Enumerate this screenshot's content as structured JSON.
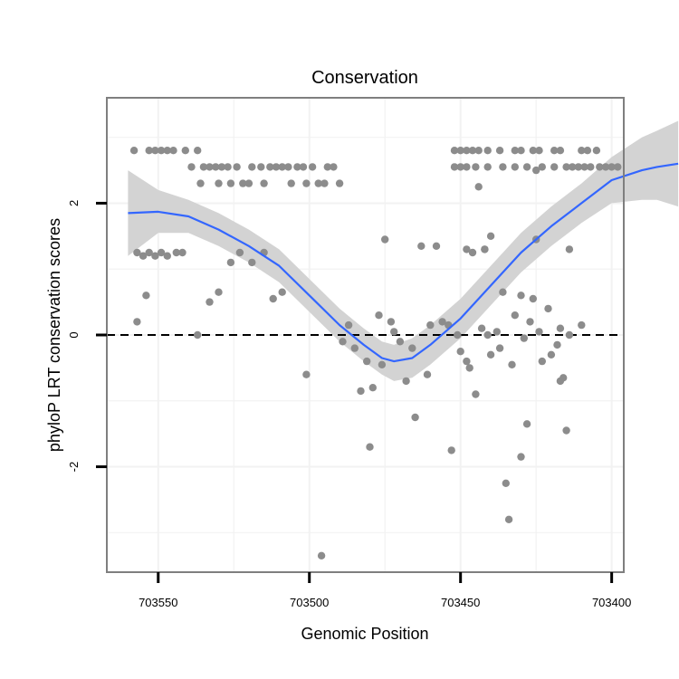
{
  "chart_data": {
    "type": "scatter",
    "title": "Conservation",
    "xlabel": "Genomic Position",
    "ylabel": "phyloP LRT conservation scores",
    "x_reversed": true,
    "xlim": [
      703567,
      703396
    ],
    "ylim": [
      -3.6,
      3.6
    ],
    "x_ticks": [
      703550,
      703500,
      703450,
      703400
    ],
    "y_ticks": [
      -2,
      0,
      2
    ],
    "reference_line": {
      "y": 0,
      "style": "dashed",
      "color": "#000000"
    },
    "grid": true,
    "colors": {
      "points": "#8c8c8c",
      "smooth_line": "#3366ff",
      "confidence_band": "#d3d3d3",
      "panel_border": "#7f7f7f",
      "gridlines": "#f2f2f2"
    },
    "points": [
      [
        703558,
        2.8
      ],
      [
        703553,
        2.8
      ],
      [
        703551,
        2.8
      ],
      [
        703549,
        2.8
      ],
      [
        703547,
        2.8
      ],
      [
        703545,
        2.8
      ],
      [
        703541,
        2.8
      ],
      [
        703537,
        2.8
      ],
      [
        703539,
        2.55
      ],
      [
        703536,
        2.3
      ],
      [
        703535,
        2.55
      ],
      [
        703533,
        2.55
      ],
      [
        703531,
        2.55
      ],
      [
        703530,
        2.3
      ],
      [
        703529,
        2.55
      ],
      [
        703527,
        2.55
      ],
      [
        703526,
        2.3
      ],
      [
        703524,
        2.55
      ],
      [
        703522,
        2.3
      ],
      [
        703520,
        2.3
      ],
      [
        703519,
        2.55
      ],
      [
        703516,
        2.55
      ],
      [
        703515,
        2.3
      ],
      [
        703513,
        2.55
      ],
      [
        703511,
        2.55
      ],
      [
        703509,
        2.55
      ],
      [
        703507,
        2.55
      ],
      [
        703506,
        2.3
      ],
      [
        703504,
        2.55
      ],
      [
        703502,
        2.55
      ],
      [
        703501,
        2.3
      ],
      [
        703499,
        2.55
      ],
      [
        703497,
        2.3
      ],
      [
        703495,
        2.3
      ],
      [
        703494,
        2.55
      ],
      [
        703492,
        2.55
      ],
      [
        703490,
        2.3
      ],
      [
        703557,
        1.25
      ],
      [
        703555,
        1.2
      ],
      [
        703553,
        1.25
      ],
      [
        703551,
        1.2
      ],
      [
        703549,
        1.25
      ],
      [
        703547,
        1.2
      ],
      [
        703544,
        1.25
      ],
      [
        703542,
        1.25
      ],
      [
        703557,
        0.2
      ],
      [
        703554,
        0.6
      ],
      [
        703537,
        0.0
      ],
      [
        703533,
        0.5
      ],
      [
        703530,
        0.65
      ],
      [
        703526,
        1.1
      ],
      [
        703523,
        1.25
      ],
      [
        703519,
        1.1
      ],
      [
        703515,
        1.25
      ],
      [
        703512,
        0.55
      ],
      [
        703509,
        0.65
      ],
      [
        703501,
        -0.6
      ],
      [
        703489,
        -0.1
      ],
      [
        703487,
        0.15
      ],
      [
        703485,
        -0.2
      ],
      [
        703483,
        -0.85
      ],
      [
        703481,
        -0.4
      ],
      [
        703480,
        -1.7
      ],
      [
        703479,
        -0.8
      ],
      [
        703477,
        0.3
      ],
      [
        703476,
        -0.45
      ],
      [
        703475,
        1.45
      ],
      [
        703473,
        0.2
      ],
      [
        703472,
        0.05
      ],
      [
        703470,
        -0.1
      ],
      [
        703468,
        -0.7
      ],
      [
        703466,
        -0.2
      ],
      [
        703465,
        -1.25
      ],
      [
        703463,
        1.35
      ],
      [
        703461,
        -0.6
      ],
      [
        703460,
        0.15
      ],
      [
        703458,
        1.35
      ],
      [
        703456,
        0.2
      ],
      [
        703454,
        0.15
      ],
      [
        703453,
        -1.75
      ],
      [
        703451,
        0.0
      ],
      [
        703450,
        -0.25
      ],
      [
        703448,
        -0.4
      ],
      [
        703447,
        -0.5
      ],
      [
        703445,
        -0.9
      ],
      [
        703444,
        2.25
      ],
      [
        703443,
        0.1
      ],
      [
        703442,
        1.3
      ],
      [
        703441,
        0.0
      ],
      [
        703440,
        -0.3
      ],
      [
        703438,
        0.05
      ],
      [
        703437,
        -0.2
      ],
      [
        703435,
        -2.25
      ],
      [
        703434,
        -2.8
      ],
      [
        703433,
        -0.45
      ],
      [
        703432,
        0.3
      ],
      [
        703430,
        -1.85
      ],
      [
        703429,
        -0.05
      ],
      [
        703428,
        -1.35
      ],
      [
        703426,
        0.55
      ],
      [
        703425,
        2.5
      ],
      [
        703424,
        0.05
      ],
      [
        703423,
        -0.4
      ],
      [
        703421,
        0.4
      ],
      [
        703420,
        -0.3
      ],
      [
        703418,
        -0.15
      ],
      [
        703417,
        -0.7
      ],
      [
        703416,
        -0.65
      ],
      [
        703415,
        -1.45
      ],
      [
        703414,
        0.0
      ],
      [
        703496,
        -3.35
      ],
      [
        703452,
        2.8
      ],
      [
        703450,
        2.8
      ],
      [
        703448,
        2.8
      ],
      [
        703446,
        2.8
      ],
      [
        703444,
        2.8
      ],
      [
        703441,
        2.8
      ],
      [
        703437,
        2.8
      ],
      [
        703432,
        2.8
      ],
      [
        703430,
        2.8
      ],
      [
        703426,
        2.8
      ],
      [
        703424,
        2.8
      ],
      [
        703419,
        2.8
      ],
      [
        703417,
        2.8
      ],
      [
        703410,
        2.8
      ],
      [
        703408,
        2.8
      ],
      [
        703405,
        2.8
      ],
      [
        703452,
        2.55
      ],
      [
        703450,
        2.55
      ],
      [
        703448,
        2.55
      ],
      [
        703445,
        2.55
      ],
      [
        703441,
        2.55
      ],
      [
        703436,
        2.55
      ],
      [
        703432,
        2.55
      ],
      [
        703428,
        2.55
      ],
      [
        703423,
        2.55
      ],
      [
        703419,
        2.55
      ],
      [
        703415,
        2.55
      ],
      [
        703413,
        2.55
      ],
      [
        703411,
        2.55
      ],
      [
        703409,
        2.55
      ],
      [
        703407,
        2.55
      ],
      [
        703404,
        2.55
      ],
      [
        703402,
        2.55
      ],
      [
        703400,
        2.55
      ],
      [
        703398,
        2.55
      ],
      [
        703448,
        1.3
      ],
      [
        703446,
        1.25
      ],
      [
        703442,
        1.3
      ],
      [
        703440,
        1.5
      ],
      [
        703436,
        0.65
      ],
      [
        703430,
        0.6
      ],
      [
        703427,
        0.2
      ],
      [
        703425,
        1.45
      ],
      [
        703417,
        0.1
      ],
      [
        703414,
        1.3
      ],
      [
        703410,
        0.15
      ]
    ],
    "smooth": [
      [
        703560,
        1.85
      ],
      [
        703550,
        1.87
      ],
      [
        703540,
        1.8
      ],
      [
        703530,
        1.6
      ],
      [
        703520,
        1.35
      ],
      [
        703510,
        1.05
      ],
      [
        703500,
        0.6
      ],
      [
        703490,
        0.15
      ],
      [
        703482,
        -0.15
      ],
      [
        703476,
        -0.35
      ],
      [
        703472,
        -0.4
      ],
      [
        703466,
        -0.35
      ],
      [
        703460,
        -0.15
      ],
      [
        703450,
        0.25
      ],
      [
        703440,
        0.75
      ],
      [
        703430,
        1.25
      ],
      [
        703420,
        1.65
      ],
      [
        703410,
        2.0
      ],
      [
        703400,
        2.35
      ],
      [
        703390,
        2.5
      ],
      [
        703385,
        2.55
      ],
      [
        703378,
        2.6
      ]
    ],
    "band_upper": [
      [
        703560,
        2.5
      ],
      [
        703550,
        2.2
      ],
      [
        703540,
        2.05
      ],
      [
        703530,
        1.85
      ],
      [
        703520,
        1.6
      ],
      [
        703510,
        1.3
      ],
      [
        703500,
        0.85
      ],
      [
        703490,
        0.4
      ],
      [
        703482,
        0.1
      ],
      [
        703476,
        -0.1
      ],
      [
        703472,
        -0.15
      ],
      [
        703466,
        -0.05
      ],
      [
        703460,
        0.15
      ],
      [
        703450,
        0.55
      ],
      [
        703440,
        1.05
      ],
      [
        703430,
        1.55
      ],
      [
        703420,
        1.95
      ],
      [
        703410,
        2.3
      ],
      [
        703400,
        2.7
      ],
      [
        703390,
        3.0
      ],
      [
        703385,
        3.1
      ],
      [
        703378,
        3.25
      ]
    ],
    "band_lower": [
      [
        703560,
        1.2
      ],
      [
        703550,
        1.55
      ],
      [
        703540,
        1.55
      ],
      [
        703530,
        1.35
      ],
      [
        703520,
        1.1
      ],
      [
        703510,
        0.8
      ],
      [
        703500,
        0.35
      ],
      [
        703490,
        -0.1
      ],
      [
        703482,
        -0.4
      ],
      [
        703476,
        -0.6
      ],
      [
        703472,
        -0.7
      ],
      [
        703466,
        -0.65
      ],
      [
        703460,
        -0.45
      ],
      [
        703450,
        -0.05
      ],
      [
        703440,
        0.45
      ],
      [
        703430,
        0.95
      ],
      [
        703420,
        1.35
      ],
      [
        703410,
        1.7
      ],
      [
        703400,
        2.0
      ],
      [
        703390,
        2.05
      ],
      [
        703385,
        2.05
      ],
      [
        703378,
        1.95
      ]
    ]
  }
}
